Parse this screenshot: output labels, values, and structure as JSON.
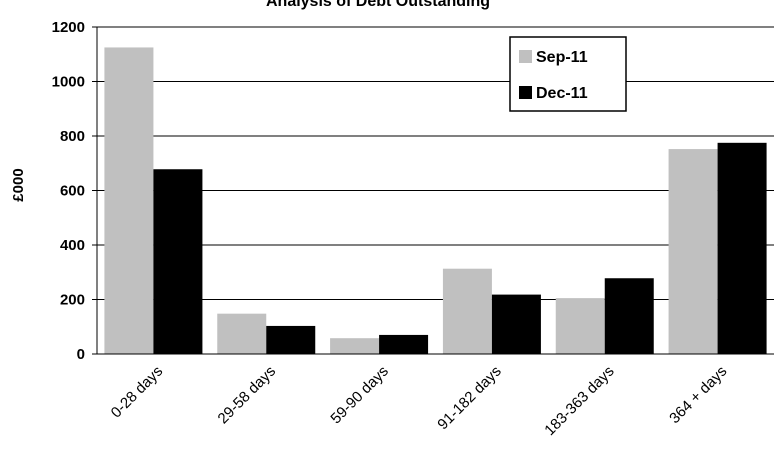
{
  "chart_data": {
    "type": "bar",
    "title": "Analysis of Debt Outstanding",
    "xlabel": "",
    "ylabel": "£000",
    "ylim": [
      0,
      1200
    ],
    "yticks": [
      0,
      200,
      400,
      600,
      800,
      1000,
      1200
    ],
    "grid": true,
    "legend_position": "top-right",
    "categories": [
      "0-28 days",
      "29-58 days",
      "59-90 days",
      "91-182 days",
      "183-363 days",
      "364 + days"
    ],
    "series": [
      {
        "name": "Sep-11",
        "color": "#c0c0c0",
        "values": [
          1125,
          148,
          58,
          313,
          205,
          752
        ]
      },
      {
        "name": "Dec-11",
        "color": "#000000",
        "values": [
          678,
          103,
          70,
          218,
          278,
          775
        ]
      }
    ]
  }
}
